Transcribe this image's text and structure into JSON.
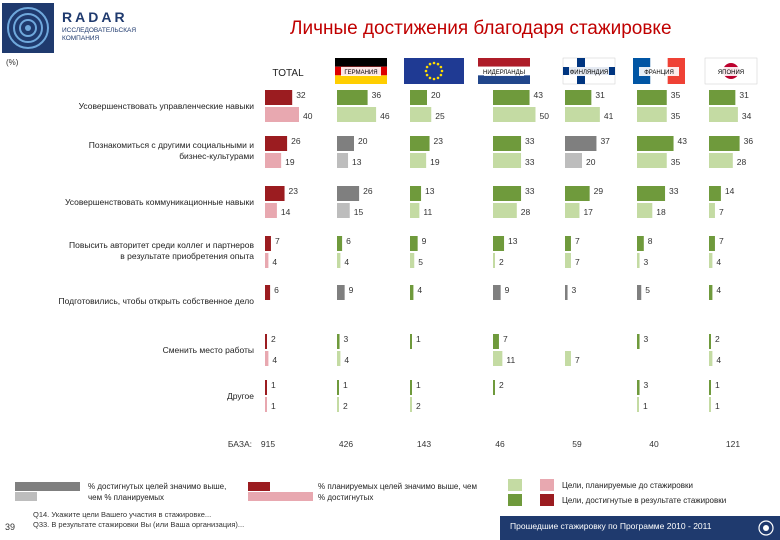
{
  "header": {
    "logo_brand": "RADAR",
    "logo_sub_1": "ИССЛЕДОВАТЕЛЬСКАЯ",
    "logo_sub_2": "КОМПАНИЯ",
    "title": "Личные достижения благодаря стажировке",
    "percent_label": "(%)"
  },
  "colors": {
    "total_planned": "#e8a8b0",
    "total_achieved": "#9b1c20",
    "country_planned": "#c4dba3",
    "country_achieved": "#6f9a3c",
    "worse_planned": "#bdbdbd",
    "worse_achieved": "#7f7f7f",
    "footer": "#1f3a6e"
  },
  "chart_data": {
    "type": "bar",
    "groups": [
      {
        "label": "TOTAL",
        "icon": "total-label"
      },
      {
        "label": "ГЕРМАНИЯ",
        "icon": "germany-flag"
      },
      {
        "label": "",
        "icon": "eu-flag"
      },
      {
        "label": "НИДЕРЛАНДЫ",
        "icon": "netherlands-flag"
      },
      {
        "label": "ФИНЛЯНДИЯ",
        "icon": "finland-flag"
      },
      {
        "label": "ФРАНЦИЯ",
        "icon": "france-flag"
      },
      {
        "label": "ЯПОНИЯ",
        "icon": "japan-flag"
      }
    ],
    "categories": [
      "Усовершенствовать управленческие навыки",
      "Познакомиться с другими социальными и бизнес-культурами",
      "Усовершенствовать коммуникационные навыки",
      "Повысить авторитет среди коллег и партнеров в результате приобретения опыта",
      "Подготовились, чтобы открыть собственное дело",
      "Сменить место работы",
      "Другое"
    ],
    "achieved": [
      [
        32,
        36,
        20,
        43,
        31,
        35,
        31
      ],
      [
        26,
        20,
        23,
        33,
        37,
        43,
        36
      ],
      [
        23,
        26,
        13,
        33,
        29,
        33,
        14
      ],
      [
        7,
        6,
        9,
        13,
        7,
        8,
        7
      ],
      [
        6,
        9,
        4,
        9,
        3,
        5,
        4
      ],
      [
        2,
        3,
        1,
        7,
        null,
        3,
        2
      ],
      [
        1,
        1,
        1,
        2,
        null,
        3,
        1
      ]
    ],
    "planned": [
      [
        40,
        46,
        25,
        50,
        41,
        35,
        34
      ],
      [
        19,
        13,
        19,
        33,
        20,
        35,
        28
      ],
      [
        14,
        15,
        11,
        28,
        17,
        18,
        7
      ],
      [
        4,
        4,
        5,
        2,
        7,
        3,
        4
      ],
      [
        null,
        null,
        null,
        null,
        null,
        null,
        null
      ],
      [
        4,
        4,
        null,
        11,
        7,
        null,
        4
      ],
      [
        1,
        2,
        2,
        null,
        null,
        1,
        1
      ]
    ],
    "worse": [
      [
        false,
        false,
        false,
        false,
        false,
        false,
        false
      ],
      [
        true,
        true,
        false,
        false,
        true,
        false,
        false
      ],
      [
        true,
        true,
        false,
        false,
        false,
        false,
        false
      ],
      [
        false,
        false,
        false,
        false,
        false,
        false,
        false
      ],
      [
        true,
        true,
        false,
        true,
        true,
        true,
        false
      ],
      [
        false,
        false,
        false,
        false,
        false,
        false,
        false
      ],
      [
        false,
        false,
        false,
        false,
        false,
        false,
        false
      ]
    ],
    "base_label": "БАЗА:",
    "base": [
      "915",
      "426",
      "143",
      "46",
      "59",
      "40",
      "121"
    ]
  },
  "legend": {
    "worse_text": "% достигнутых целей значимо выше, чем % планируемых",
    "better_text": "% планируемых целей значимо выше, чем % достигнутых",
    "planned_text": "Цели, планируемые до стажировки",
    "achieved_text": "Цели, достигнутые в результате стажировки"
  },
  "footer": {
    "page_number": "39",
    "question_1": "Q14. Укажите цели Вашего участия в стажировке...",
    "question_2": "Q33. В результате стажировки Вы (или Ваша организация)...",
    "note": "Прошедшие стажировку по Программе 2010 - 2011"
  }
}
